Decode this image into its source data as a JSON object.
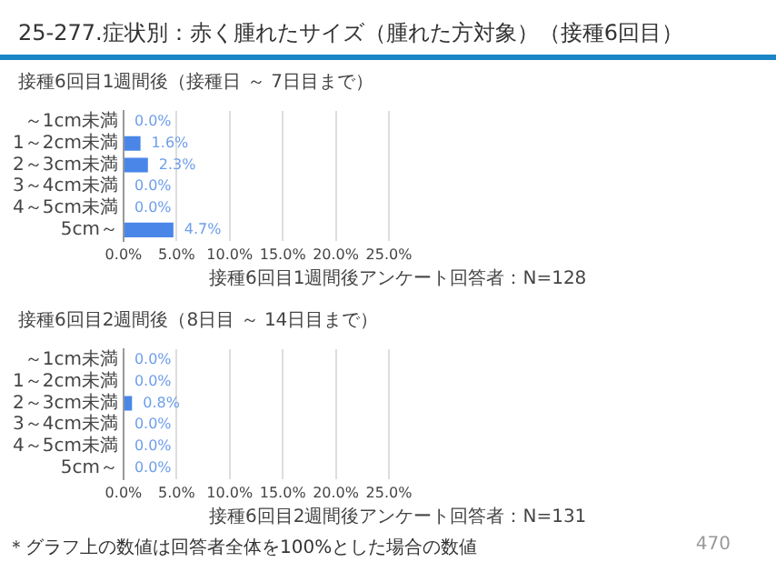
{
  "chart_data": [
    {
      "type": "bar",
      "orientation": "horizontal",
      "title": "25-277.症状別：赤く腫れたサイズ（腫れた方対象）（接種6回目）",
      "subtitle": "接種6回目1週間後（接種日 ～ 7日目まで）",
      "categories": [
        "～1cm未満",
        "1～2cm未満",
        "2～3cm未満",
        "3～4cm未満",
        "4～5cm未満",
        "5cm～"
      ],
      "values": [
        0,
        1.6,
        2.3,
        0,
        0,
        4.7
      ],
      "value_labels": [
        "0.0%",
        "1.6%",
        "2.3%",
        "0.0%",
        "0.0%",
        "4.7%"
      ],
      "color": "#4a86e8",
      "xlim": [
        0,
        25
      ],
      "xticks": [
        {
          "value": 0,
          "label": "0.0%"
        },
        {
          "value": 5,
          "label": "5.0%"
        },
        {
          "value": 10,
          "label": "10.0%"
        },
        {
          "value": 15,
          "label": "15.0%"
        },
        {
          "value": 20,
          "label": "20.0%"
        },
        {
          "value": 25,
          "label": "25.0%"
        }
      ],
      "grid": "x",
      "annotations": [
        "接種6回目1週間後アンケート回答者：N=128"
      ]
    },
    {
      "type": "bar",
      "orientation": "horizontal",
      "title": "接種6回目2週間後（8日目 ～ 14日目まで）",
      "categories": [
        "～1cm未満",
        "1～2cm未満",
        "2～3cm未満",
        "3～4cm未満",
        "4～5cm未満",
        "5cm～"
      ],
      "values": [
        0,
        0,
        0.8,
        0,
        0,
        0
      ],
      "value_labels": [
        "0.0%",
        "0.0%",
        "0.8%",
        "0.0%",
        "0.0%",
        "0.0%"
      ],
      "color": "#4a86e8",
      "xlim": [
        0,
        25
      ],
      "xticks": [
        {
          "value": 0,
          "label": "0.0%"
        },
        {
          "value": 5,
          "label": "5.0%"
        },
        {
          "value": 10,
          "label": "10.0%"
        },
        {
          "value": 15,
          "label": "15.0%"
        },
        {
          "value": 20,
          "label": "20.0%"
        },
        {
          "value": 25,
          "label": "25.0%"
        }
      ],
      "grid": "x",
      "annotations": [
        "接種6回目2週間後アンケート回答者：N=131",
        "＊グラフ上の数値は回答者全体を100%とした場合の数値",
        "470"
      ]
    }
  ]
}
